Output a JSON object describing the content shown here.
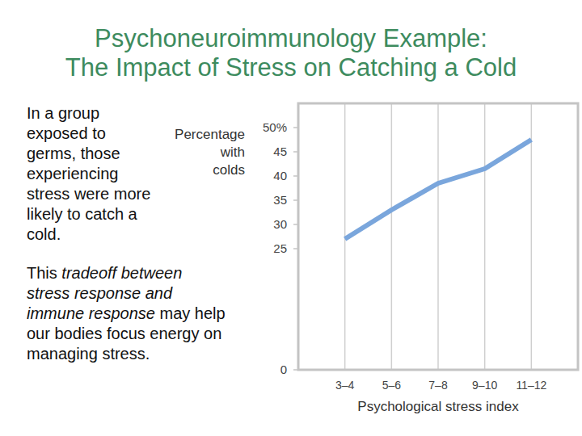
{
  "chart_data": {
    "type": "line",
    "title": "Psychoneuroimmunology Example:\nThe Impact of Stress on Catching a Cold",
    "annotations": [
      "In a group exposed to germs, those experiencing stress were more likely to catch a cold.",
      [
        "This ",
        "tradeoff between stress response and immune response",
        " may help our bodies focus energy on managing stress."
      ]
    ],
    "x_label": "Psychological stress index",
    "y_label": "Percentage\nwith\ncolds",
    "categories": [
      "3–4",
      "5–6",
      "7–8",
      "9–10",
      "11–12"
    ],
    "values": [
      27,
      33,
      38.5,
      41.5,
      47.5
    ],
    "color": "#7aa6dc",
    "ylim": [
      0,
      55
    ],
    "yticks": [
      0,
      25,
      30,
      35,
      40,
      45,
      {
        "value": 50,
        "label": "50%"
      }
    ],
    "grid": true
  }
}
